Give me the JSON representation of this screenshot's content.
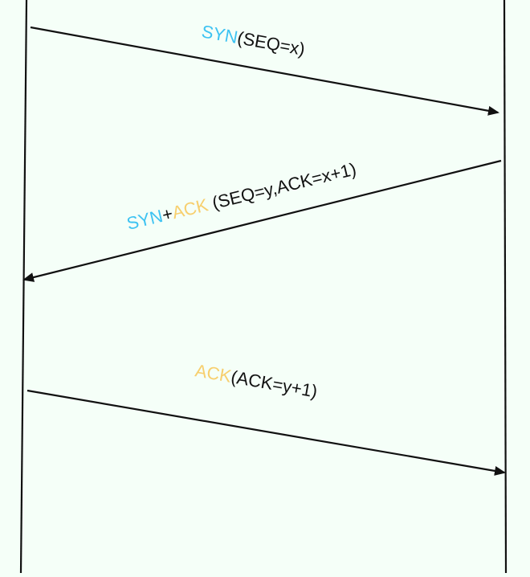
{
  "colors": {
    "background": "#f5fff8",
    "line": "#111111",
    "syn": "#3ec3f2",
    "ack": "#f7cf6e",
    "text": "#111111"
  },
  "messages": [
    {
      "id": "syn",
      "direction": "client-to-server",
      "parts": [
        {
          "text": "SYN",
          "color_key": "syn"
        },
        {
          "text": "(SEQ=x)",
          "color_key": "text"
        }
      ]
    },
    {
      "id": "syn-ack",
      "direction": "server-to-client",
      "parts": [
        {
          "text": "SYN",
          "color_key": "syn"
        },
        {
          "text": "+",
          "color_key": "text"
        },
        {
          "text": "ACK",
          "color_key": "ack"
        },
        {
          "text": " (SEQ=y,ACK=x+1)",
          "color_key": "text"
        }
      ]
    },
    {
      "id": "ack",
      "direction": "client-to-server",
      "parts": [
        {
          "text": "ACK",
          "color_key": "ack"
        },
        {
          "text": "(ACK=y+1)",
          "color_key": "text"
        }
      ]
    }
  ]
}
